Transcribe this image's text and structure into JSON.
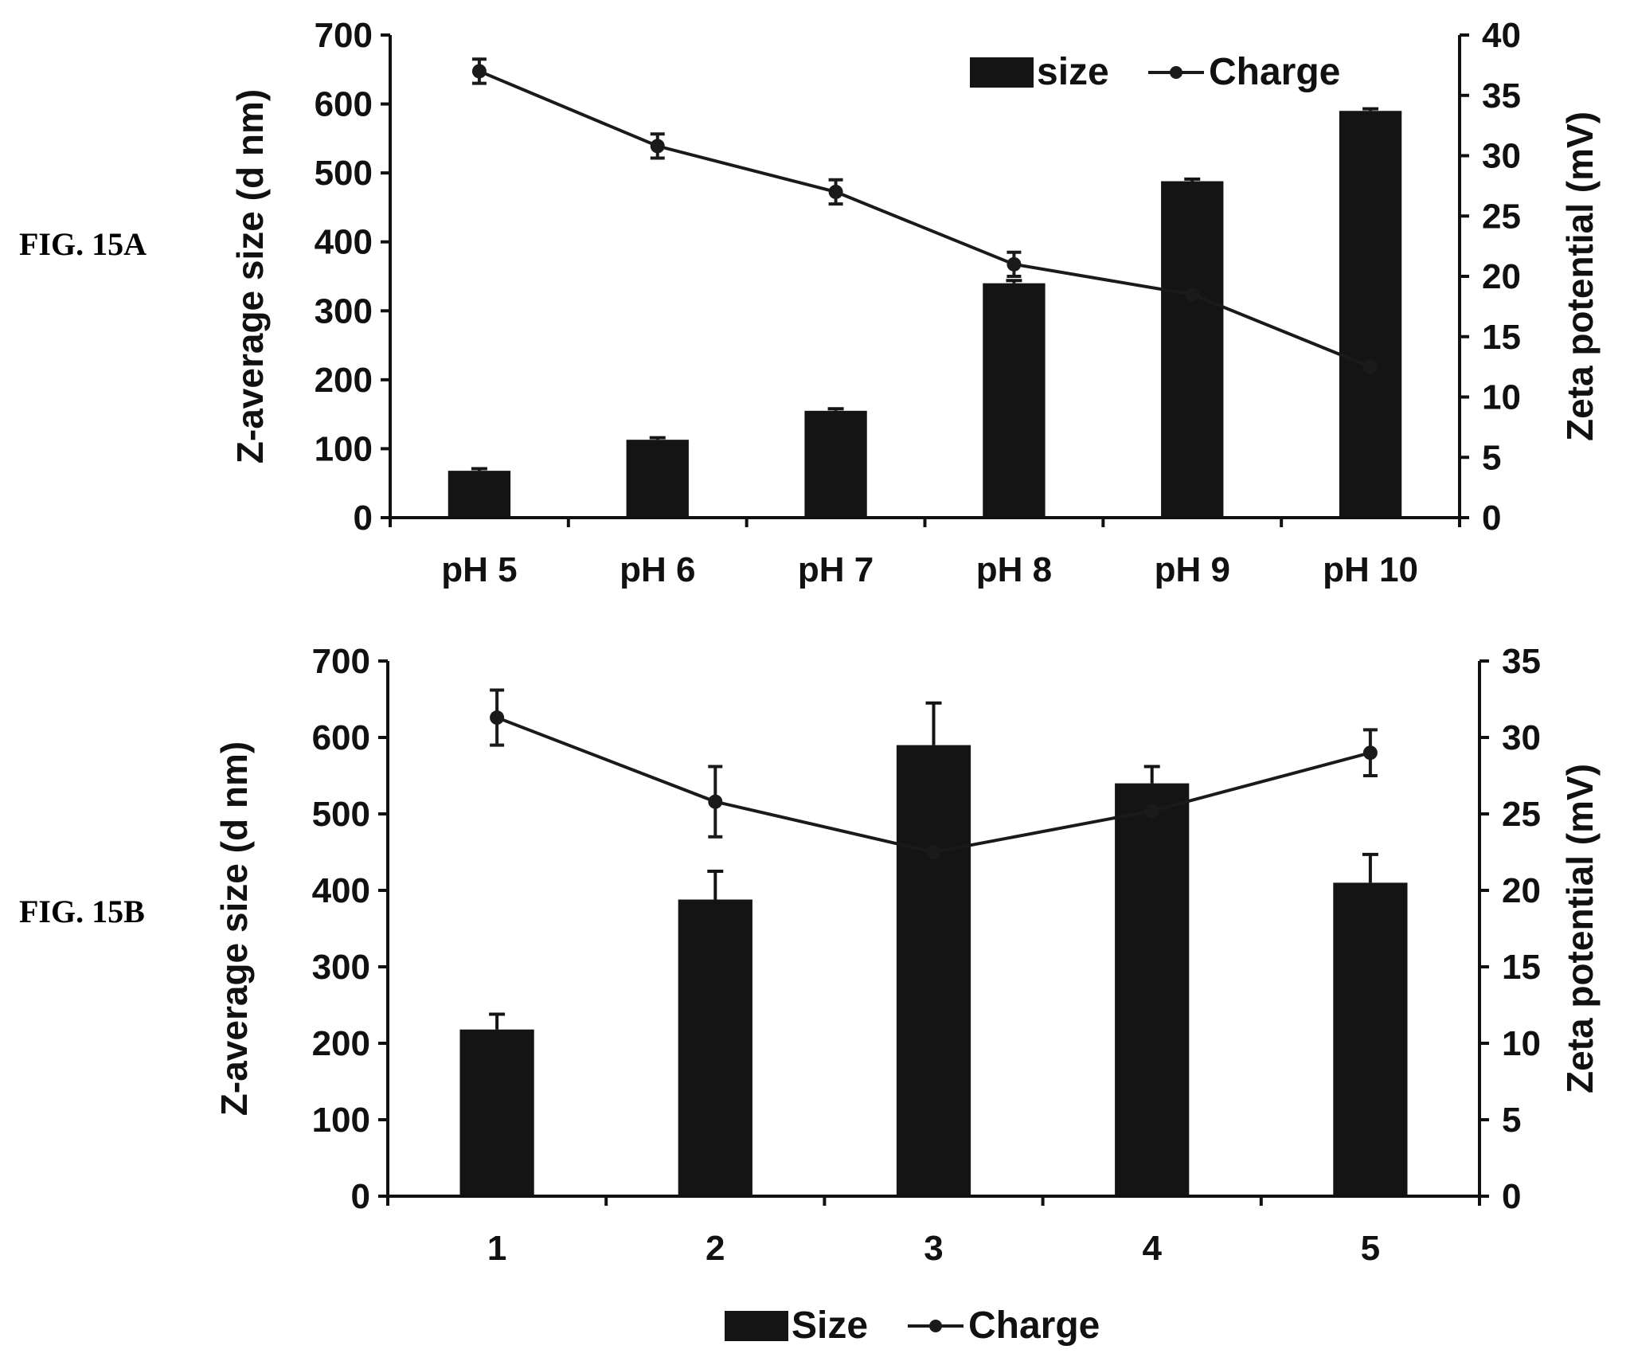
{
  "figure_labels": [
    "FIG. 15A",
    "FIG. 15B"
  ],
  "colors": {
    "bar": "#141414",
    "line": "#1a1a1a",
    "axis": "#111111"
  },
  "chart_data": [
    {
      "type": "bar",
      "label": "FIG. 15A",
      "categories": [
        "pH 5",
        "pH 6",
        "pH 7",
        "pH 8",
        "pH 9",
        "pH 10"
      ],
      "ylabel": "Z-average size (d nm)",
      "y2label": "Zeta potential (mV)",
      "ylim": [
        0,
        700
      ],
      "y2lim": [
        0,
        40
      ],
      "yticks": [
        "0",
        "100",
        "200",
        "300",
        "400",
        "500",
        "600",
        "700"
      ],
      "y2ticks": [
        "0",
        "5",
        "10",
        "15",
        "20",
        "25",
        "30",
        "35",
        "40"
      ],
      "legend_position": "top-right",
      "grid": false,
      "series": [
        {
          "name": "size",
          "type": "bar",
          "axis": "left",
          "values": [
            68,
            113,
            155,
            340,
            488,
            590
          ],
          "error": [
            3,
            3,
            3,
            4,
            3,
            3
          ]
        },
        {
          "name": "Charge",
          "type": "line",
          "axis": "right",
          "values": [
            37,
            30.8,
            27,
            21,
            18.5,
            12.5
          ],
          "error": [
            1,
            1,
            1,
            1,
            0,
            0
          ]
        }
      ]
    },
    {
      "type": "bar",
      "label": "FIG. 15B",
      "categories": [
        "1",
        "2",
        "3",
        "4",
        "5"
      ],
      "ylabel": "Z-average size (d nm)",
      "y2label": "Zeta potential (mV)",
      "ylim": [
        0,
        700
      ],
      "y2lim": [
        0,
        35
      ],
      "yticks": [
        "0",
        "100",
        "200",
        "300",
        "400",
        "500",
        "600",
        "700"
      ],
      "y2ticks": [
        "0",
        "5",
        "10",
        "15",
        "20",
        "25",
        "30",
        "35"
      ],
      "legend_position": "bottom",
      "grid": false,
      "series": [
        {
          "name": "Size",
          "type": "bar",
          "axis": "left",
          "values": [
            218,
            388,
            590,
            540,
            410
          ],
          "error": [
            20,
            37,
            55,
            22,
            37
          ]
        },
        {
          "name": "Charge",
          "type": "line",
          "axis": "right",
          "values": [
            31.3,
            25.8,
            22.5,
            25.2,
            29
          ],
          "error": [
            1.8,
            2.3,
            0,
            0,
            1.5
          ]
        }
      ]
    }
  ]
}
